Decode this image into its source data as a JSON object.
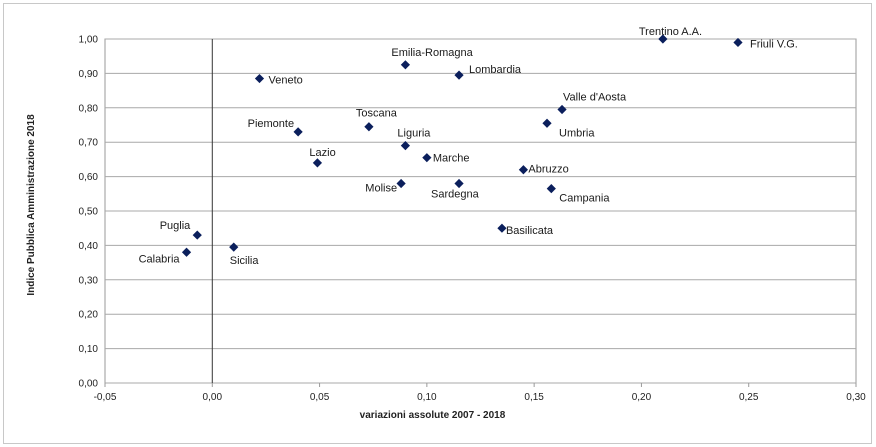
{
  "chart_data": {
    "type": "scatter",
    "title": "",
    "xlabel": "variazioni assolute 2007 - 2018",
    "ylabel": "Indice Pubblica Amministrazione 2018",
    "xlim": [
      -0.05,
      0.3
    ],
    "ylim": [
      0.0,
      1.0
    ],
    "x_ticks": [
      "-0,05",
      "0,00",
      "0,05",
      "0,10",
      "0,15",
      "0,20",
      "0,25",
      "0,30"
    ],
    "y_ticks": [
      "0,00",
      "0,10",
      "0,20",
      "0,30",
      "0,40",
      "0,50",
      "0,60",
      "0,70",
      "0,80",
      "0,90",
      "1,00"
    ],
    "grid": "horizontal",
    "marker_color": "#0b1f5c",
    "points": [
      {
        "label": "Trentino A.A.",
        "x": 0.21,
        "y": 1.0
      },
      {
        "label": "Friuli V.G.",
        "x": 0.245,
        "y": 0.99
      },
      {
        "label": "Emilia-Romagna",
        "x": 0.09,
        "y": 0.925
      },
      {
        "label": "Lombardia",
        "x": 0.115,
        "y": 0.895
      },
      {
        "label": "Veneto",
        "x": 0.022,
        "y": 0.885
      },
      {
        "label": "Valle d'Aosta",
        "x": 0.163,
        "y": 0.795
      },
      {
        "label": "Umbria",
        "x": 0.156,
        "y": 0.755
      },
      {
        "label": "Toscana",
        "x": 0.073,
        "y": 0.745
      },
      {
        "label": "Piemonte",
        "x": 0.04,
        "y": 0.73
      },
      {
        "label": "Liguria",
        "x": 0.09,
        "y": 0.69
      },
      {
        "label": "Marche",
        "x": 0.1,
        "y": 0.655
      },
      {
        "label": "Lazio",
        "x": 0.049,
        "y": 0.64
      },
      {
        "label": "Abruzzo",
        "x": 0.145,
        "y": 0.62
      },
      {
        "label": "Molise",
        "x": 0.088,
        "y": 0.58
      },
      {
        "label": "Sardegna",
        "x": 0.115,
        "y": 0.58
      },
      {
        "label": "Campania",
        "x": 0.158,
        "y": 0.565
      },
      {
        "label": "Basilicata",
        "x": 0.135,
        "y": 0.45
      },
      {
        "label": "Puglia",
        "x": -0.007,
        "y": 0.43
      },
      {
        "label": "Sicilia",
        "x": 0.01,
        "y": 0.395
      },
      {
        "label": "Calabria",
        "x": -0.012,
        "y": 0.38
      }
    ]
  }
}
